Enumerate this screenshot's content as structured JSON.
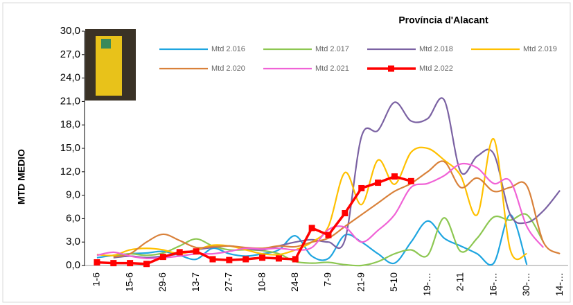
{
  "chart_data": {
    "type": "line",
    "title": "Província d'Alacant",
    "y_label": "MTD MEDIO",
    "categories": [
      "1-6",
      null,
      "15-6",
      null,
      "29-6",
      null,
      "13-7",
      null,
      "27-7",
      null,
      "10-8",
      null,
      "24-8",
      null,
      "7-9",
      null,
      "21-9",
      null,
      "5-10",
      null,
      "19-…",
      null,
      "2-11",
      null,
      "16-…",
      null,
      "30-…",
      null,
      "14-…"
    ],
    "ylim": [
      0,
      30
    ],
    "yticks": [
      {
        "value": 0,
        "label": "0,0"
      },
      {
        "value": 3,
        "label": "3,0"
      },
      {
        "value": 6,
        "label": "6,0"
      },
      {
        "value": 9,
        "label": "9,0"
      },
      {
        "value": 12,
        "label": "12,0"
      },
      {
        "value": 15,
        "label": "15,0"
      },
      {
        "value": 18,
        "label": "18,0"
      },
      {
        "value": 21,
        "label": "21,0"
      },
      {
        "value": 24,
        "label": "24,0"
      },
      {
        "value": 27,
        "label": "27,0"
      },
      {
        "value": 30,
        "label": "30,0"
      }
    ],
    "series": [
      {
        "name": "Mtd 2.016",
        "color": "#1ea5e0",
        "values": [
          1.0,
          1.3,
          1.5,
          1.6,
          1.8,
          1.3,
          0.8,
          2.2,
          1.5,
          1.2,
          1.5,
          2.0,
          3.8,
          1.2,
          0.9,
          3.9,
          3.0,
          1.5,
          0.3,
          3.0,
          5.7,
          3.5,
          2.5,
          1.5,
          0.3,
          6.5,
          0.1,
          null,
          null
        ]
      },
      {
        "name": "Mtd 2.017",
        "color": "#8dc752",
        "values": [
          null,
          1.2,
          1.5,
          1.3,
          1.6,
          2.5,
          3.4,
          2.5,
          2.0,
          2.0,
          1.9,
          1.5,
          0.5,
          0.3,
          0.4,
          0.1,
          0.0,
          0.5,
          1.5,
          2.0,
          1.3,
          6.1,
          1.8,
          3.5,
          6.2,
          5.8,
          6.5,
          3.0,
          null
        ]
      },
      {
        "name": "Mtd 2.018",
        "color": "#7b62a3",
        "values": [
          null,
          1.0,
          1.2,
          1.0,
          1.2,
          1.5,
          2.0,
          2.3,
          2.5,
          2.2,
          2.0,
          2.5,
          3.0,
          3.3,
          3.0,
          3.3,
          16.5,
          17.3,
          20.9,
          18.5,
          18.8,
          21.2,
          12.0,
          14.0,
          14.3,
          6.5,
          5.5,
          7.0,
          9.6
        ]
      },
      {
        "name": "Mtd 2.019",
        "color": "#ffc000",
        "values": [
          1.4,
          1.3,
          2.0,
          2.2,
          2.0,
          1.5,
          2.0,
          2.6,
          2.5,
          2.0,
          1.5,
          1.4,
          2.0,
          3.0,
          5.0,
          11.9,
          7.8,
          13.5,
          10.4,
          14.5,
          15.0,
          13.5,
          11.5,
          6.5,
          16.2,
          2.0,
          1.5,
          null,
          null
        ]
      },
      {
        "name": "Mtd 2.020",
        "color": "#d9813a",
        "values": [
          null,
          1.1,
          1.5,
          3.0,
          4.0,
          3.2,
          2.3,
          2.4,
          2.5,
          2.3,
          2.2,
          2.5,
          2.4,
          3.0,
          3.5,
          5.0,
          6.5,
          8.0,
          9.5,
          10.5,
          12.0,
          13.3,
          10.0,
          11.2,
          9.5,
          10.0,
          10.2,
          3.0,
          1.5
        ]
      },
      {
        "name": "Mtd 2.021",
        "color": "#f062d6",
        "values": [
          1.3,
          1.7,
          1.2,
          0.9,
          1.0,
          1.2,
          1.5,
          1.5,
          1.8,
          2.2,
          2.1,
          2.2,
          2.0,
          2.3,
          4.6,
          4.9,
          3.0,
          4.5,
          6.5,
          10.0,
          10.5,
          11.5,
          13.0,
          12.5,
          10.5,
          10.8,
          5.0,
          2.3,
          null
        ]
      },
      {
        "name": "Mtd 2.022",
        "color": "#ff0000",
        "values": [
          0.4,
          0.3,
          0.3,
          0.2,
          1.1,
          1.7,
          1.8,
          0.8,
          0.7,
          0.8,
          1.0,
          0.9,
          0.8,
          4.8,
          3.9,
          6.7,
          9.9,
          10.6,
          11.4,
          10.8,
          null,
          null,
          null,
          null,
          null,
          null,
          null,
          null,
          null
        ]
      }
    ]
  }
}
